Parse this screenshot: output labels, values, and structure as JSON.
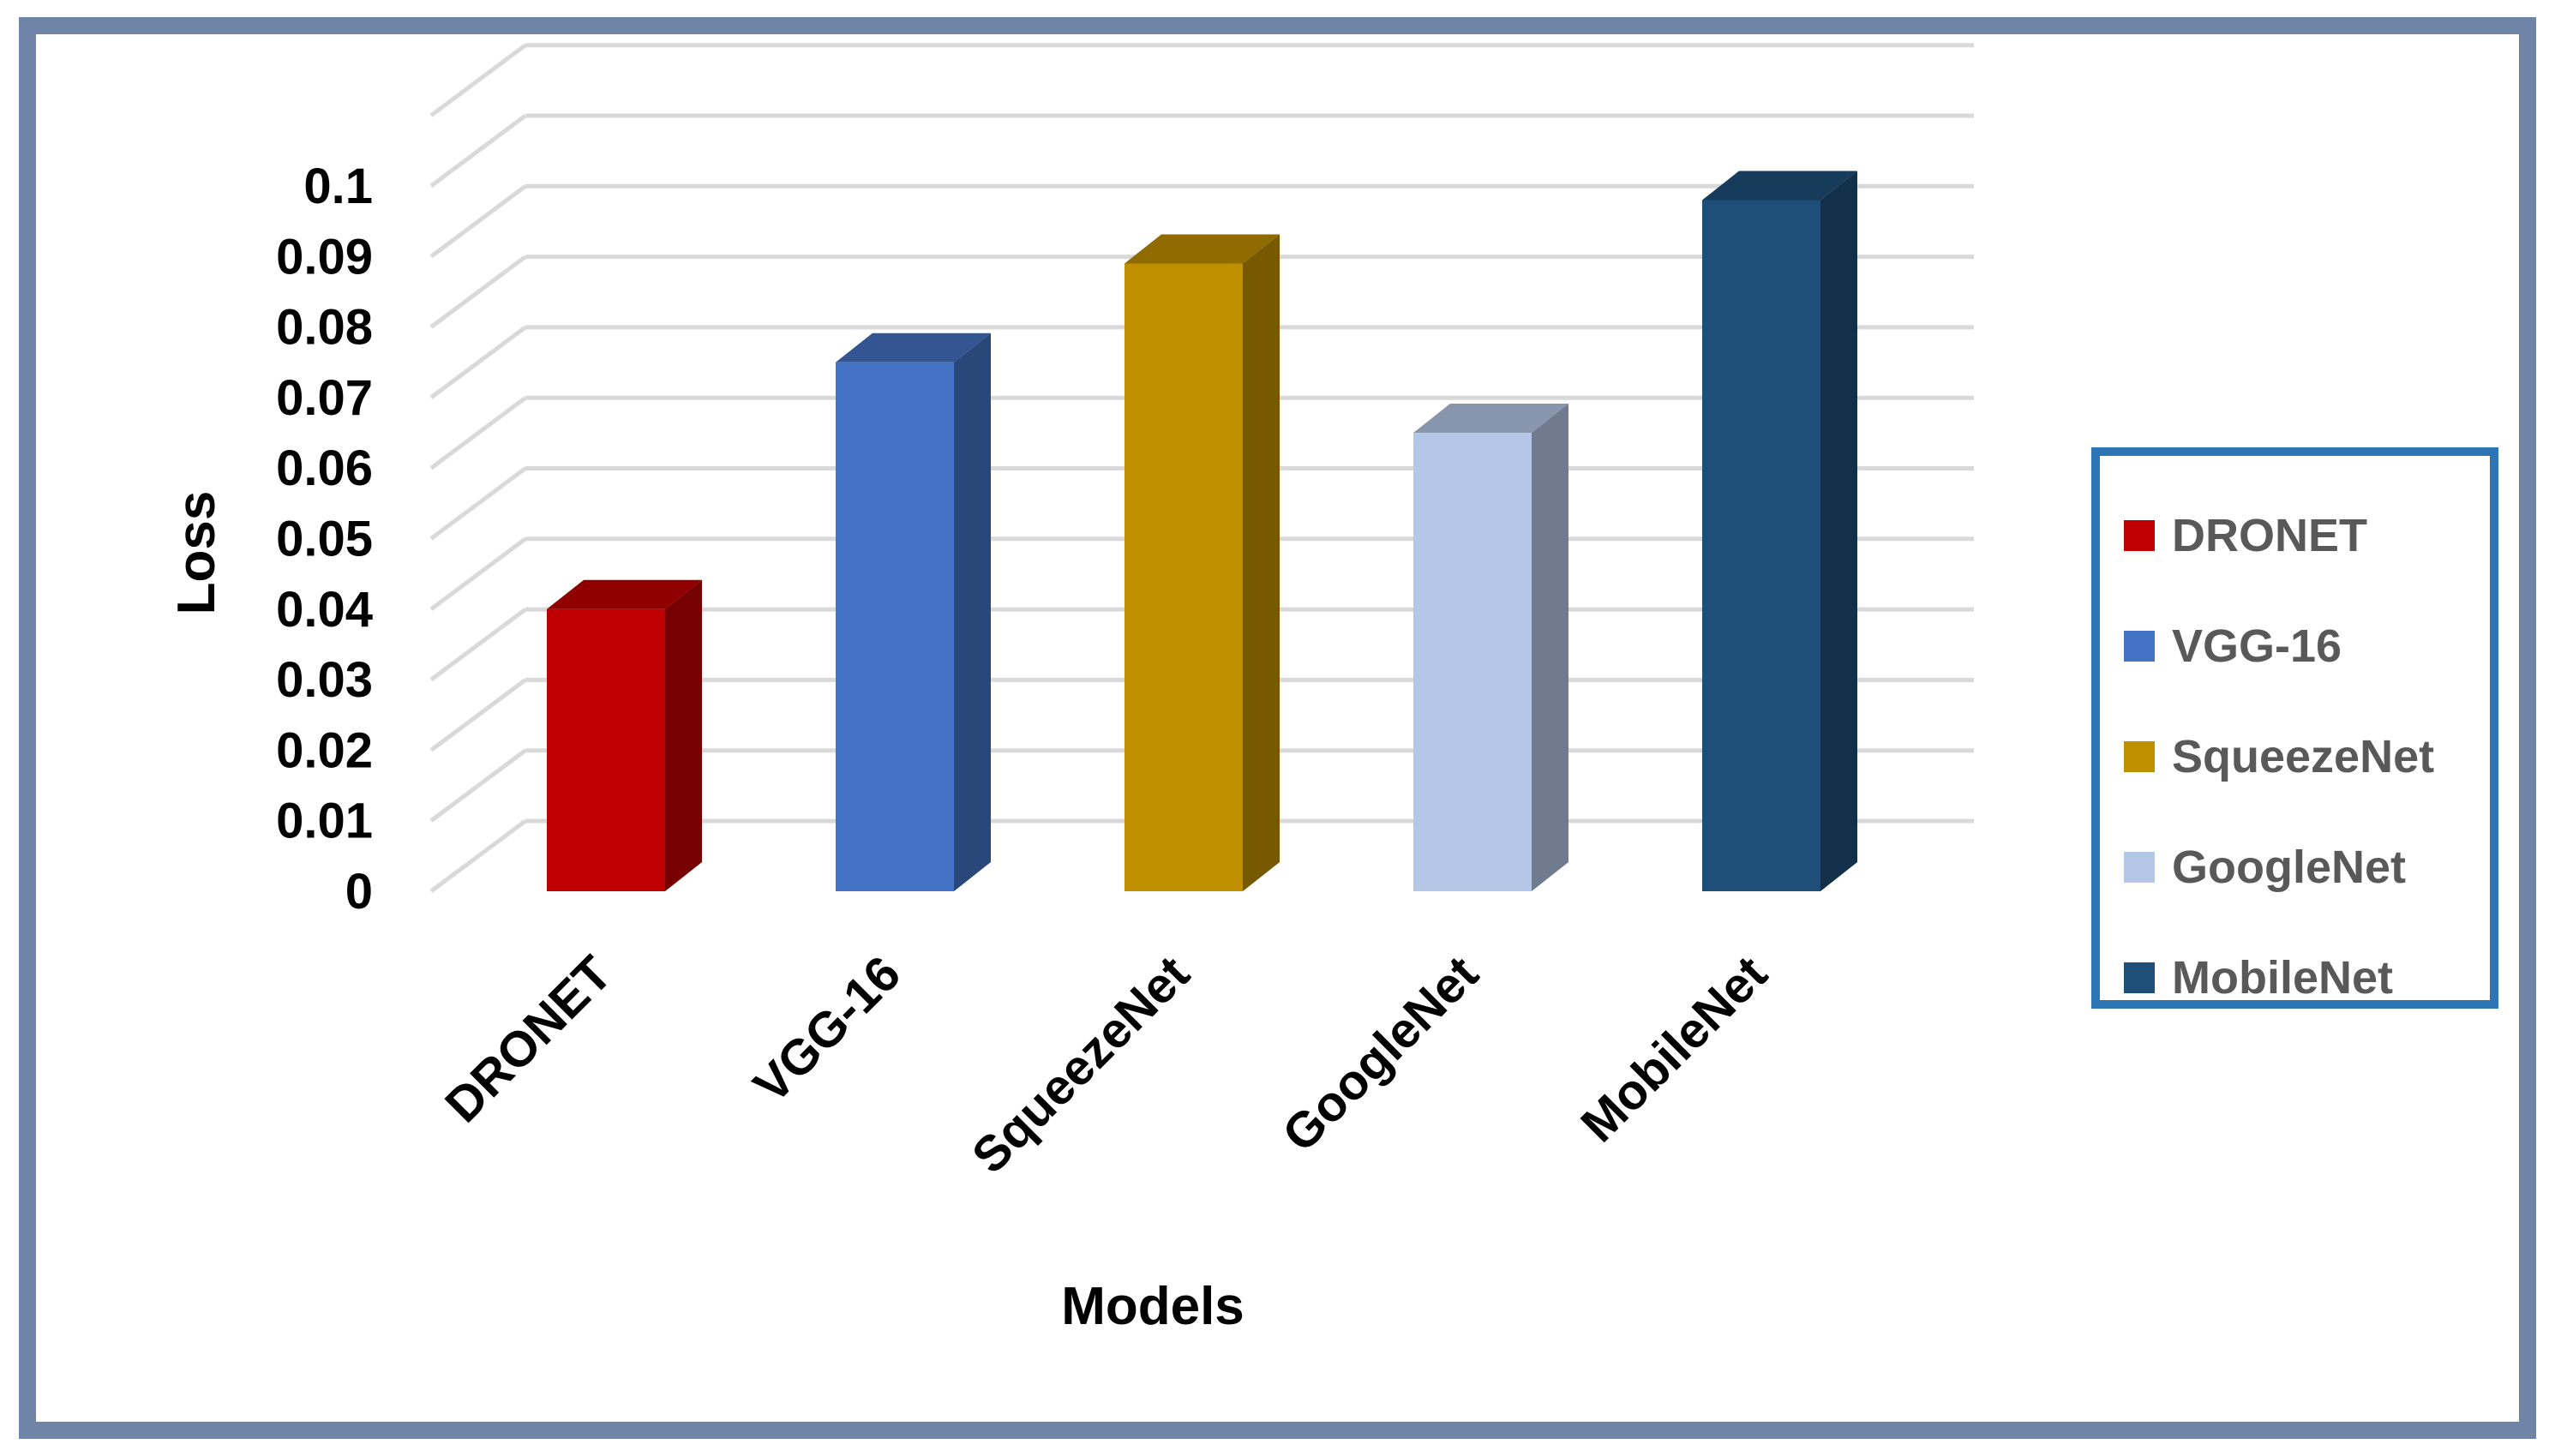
{
  "chart_data": {
    "type": "bar",
    "style": "3d-column",
    "categories": [
      "DRONET",
      "VGG-16",
      "SqueezeNet",
      "GoogleNet",
      "MobileNet"
    ],
    "values": [
      0.04,
      0.075,
      0.089,
      0.065,
      0.098
    ],
    "colors": [
      "#c00000",
      "#4472c4",
      "#bf8f00",
      "#b4c7e7",
      "#1f4e79"
    ],
    "xlabel": "Models",
    "ylabel": "Loss",
    "ylim": [
      0,
      0.1
    ],
    "yticks": [
      "0",
      "0.01",
      "0.02",
      "0.03",
      "0.04",
      "0.05",
      "0.06",
      "0.07",
      "0.08",
      "0.09",
      "0.1"
    ],
    "grid": true,
    "legend": {
      "position": "right",
      "items": [
        "DRONET",
        "VGG-16",
        "SqueezeNet",
        "GoogleNet",
        "MobileNet"
      ]
    }
  }
}
